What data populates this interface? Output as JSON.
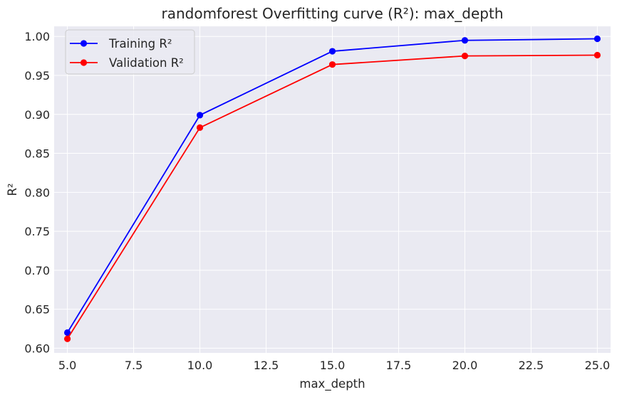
{
  "chart_data": {
    "type": "line",
    "title": "randomforest Overfitting curve (R²): max_depth",
    "xlabel": "max_depth",
    "ylabel": "R²",
    "xlim": [
      4.5,
      25.5
    ],
    "ylim": [
      0.594,
      1.013
    ],
    "xticks": [
      5.0,
      7.5,
      10.0,
      12.5,
      15.0,
      17.5,
      20.0,
      22.5,
      25.0
    ],
    "xtick_labels": [
      "5.0",
      "7.5",
      "10.0",
      "12.5",
      "15.0",
      "17.5",
      "20.0",
      "22.5",
      "25.0"
    ],
    "yticks": [
      0.6,
      0.65,
      0.7,
      0.75,
      0.8,
      0.85,
      0.9,
      0.95,
      1.0
    ],
    "ytick_labels": [
      "0.60",
      "0.65",
      "0.70",
      "0.75",
      "0.80",
      "0.85",
      "0.90",
      "0.95",
      "1.00"
    ],
    "x": [
      5,
      10,
      15,
      20,
      25
    ],
    "series": [
      {
        "name": "Training R²",
        "color": "#0000ff",
        "values": [
          0.62,
          0.899,
          0.981,
          0.995,
          0.997
        ]
      },
      {
        "name": "Validation R²",
        "color": "#ff0000",
        "values": [
          0.612,
          0.883,
          0.964,
          0.975,
          0.976
        ]
      }
    ],
    "grid": true,
    "legend_position": "top-left",
    "background_color": "#eaeaf2",
    "grid_color": "#ffffff"
  }
}
